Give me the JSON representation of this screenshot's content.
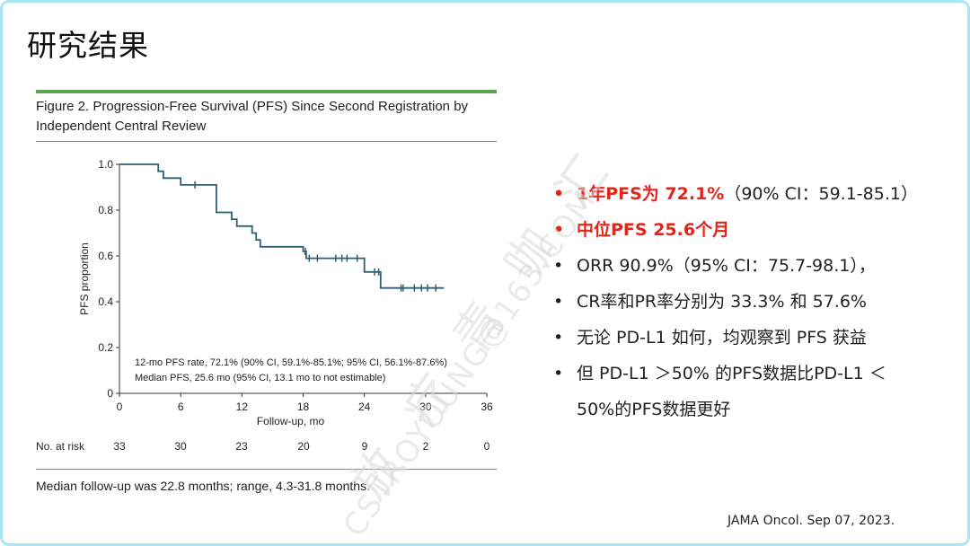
{
  "slide": {
    "title": "研究结果",
    "citation": "JAMA Oncol. Sep 07, 2023."
  },
  "figure": {
    "caption": "Figure 2. Progression-Free Survival (PFS) Since Second Registration by Independent Central Review",
    "footnote": "Median follow-up was 22.8 months; range, 4.3-31.8 months.",
    "at_risk_label": "No. at risk",
    "at_risk_values": [
      "33",
      "30",
      "23",
      "20",
      "9",
      "2",
      "0"
    ],
    "annotation_line1": "12-mo PFS rate, 72.1% (90% CI, 59.1%-85.1%; 95% CI, 56.1%-87.6%)",
    "annotation_line2": "Median PFS, 25.6 mo (95% CI, 13.1 mo to not estimable)"
  },
  "chart_data": {
    "type": "line",
    "subtype": "kaplan-meier step",
    "xlabel": "Follow-up, mo",
    "ylabel": "PFS proportion",
    "xlim": [
      0,
      36
    ],
    "ylim": [
      0,
      1.0
    ],
    "xticks": [
      0,
      6,
      12,
      18,
      24,
      30,
      36
    ],
    "yticks": [
      0,
      0.2,
      0.4,
      0.6,
      0.8,
      1.0
    ],
    "ytick_labels": [
      "0",
      "0.2",
      "0.4",
      "0.6",
      "0.8",
      "1.0"
    ],
    "grid": false,
    "line_color": "#2e5f74",
    "series": [
      {
        "steps": [
          [
            0,
            1.0
          ],
          [
            3.8,
            1.0
          ],
          [
            3.8,
            0.97
          ],
          [
            4.3,
            0.97
          ],
          [
            4.3,
            0.94
          ],
          [
            6.0,
            0.94
          ],
          [
            6.0,
            0.91
          ],
          [
            9.5,
            0.91
          ],
          [
            9.5,
            0.79
          ],
          [
            11.0,
            0.79
          ],
          [
            11.0,
            0.76
          ],
          [
            11.5,
            0.76
          ],
          [
            11.5,
            0.73
          ],
          [
            13.0,
            0.73
          ],
          [
            13.0,
            0.7
          ],
          [
            13.4,
            0.7
          ],
          [
            13.4,
            0.67
          ],
          [
            13.8,
            0.67
          ],
          [
            13.8,
            0.64
          ],
          [
            18.0,
            0.64
          ],
          [
            18.0,
            0.62
          ],
          [
            18.3,
            0.62
          ],
          [
            18.3,
            0.59
          ],
          [
            24.0,
            0.59
          ],
          [
            24.0,
            0.53
          ],
          [
            25.6,
            0.53
          ],
          [
            25.6,
            0.46
          ],
          [
            31.8,
            0.46
          ]
        ],
        "censor_x": [
          7.4,
          18.2,
          18.6,
          19.4,
          21.2,
          21.8,
          22.3,
          23.3,
          25.0,
          25.4,
          27.6,
          27.8,
          28.9,
          29.6,
          30.2,
          31.0
        ]
      }
    ]
  },
  "bullets": [
    {
      "text": "1年PFS为 72.1%",
      "suffix": "（90% CI：59.1-85.1）",
      "red": true
    },
    {
      "text": "中位PFS 25.6个月",
      "suffix": "",
      "red": true
    },
    {
      "text": "ORR  90.9%（95% CI：75.7-98.1），",
      "suffix": "",
      "red": false
    },
    {
      "text": "CR率和PR率分别为 33.3% 和 57.6%",
      "suffix": "",
      "red": false
    },
    {
      "text": "无论 PD-L1 如何，均观察到 PFS 获益",
      "suffix": "",
      "red": false
    },
    {
      "text": "但 PD-L1 ＞50% 的PFS数据比PD-L1 ＜",
      "suffix": "",
      "red": false
    }
  ],
  "bullet_continuation": "50%的PFS数据更好",
  "bullet_marker": "•",
  "watermark": {
    "cn": "放 疗 青 咖 汇",
    "en": "CSTROYOUNG@163.COM"
  }
}
